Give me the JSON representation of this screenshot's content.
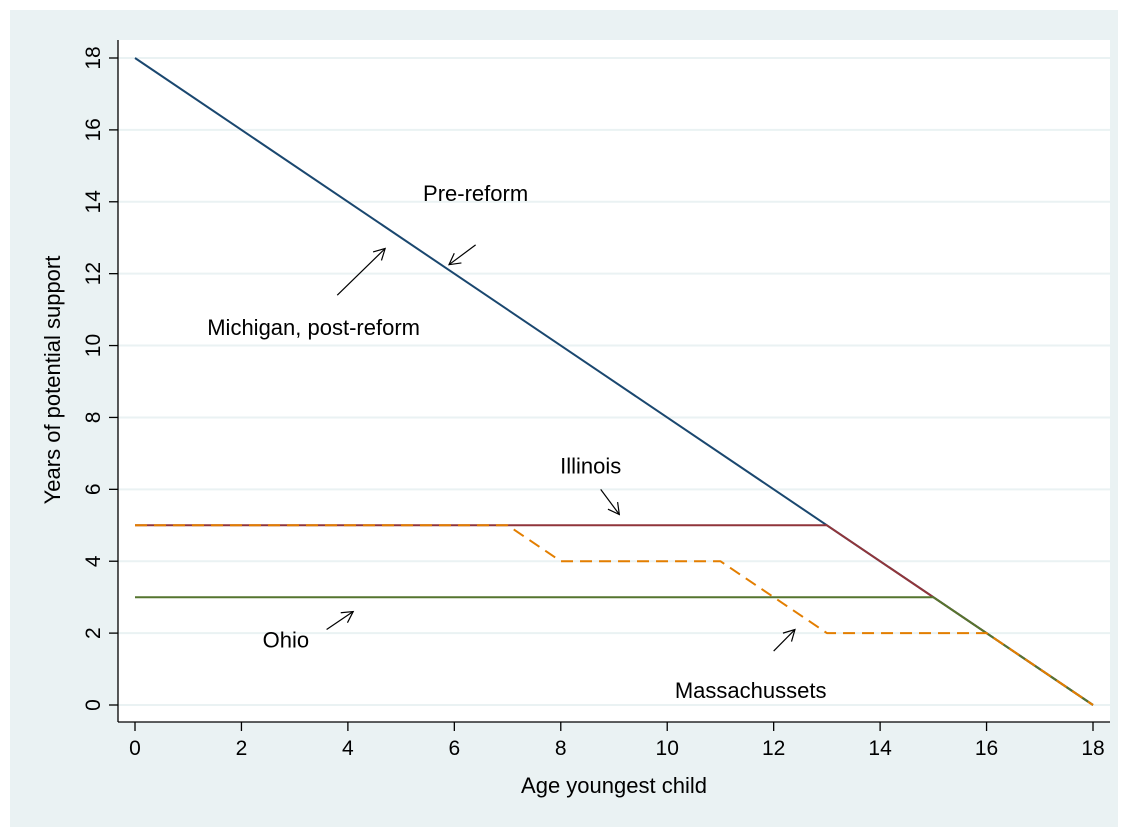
{
  "chart_data": {
    "type": "line",
    "xlabel": "Age youngest child",
    "ylabel": "Years of potential support",
    "xlim": [
      0,
      18
    ],
    "ylim": [
      0,
      18
    ],
    "xticks": [
      0,
      2,
      4,
      6,
      8,
      10,
      12,
      14,
      16,
      18
    ],
    "yticks": [
      0,
      2,
      4,
      6,
      8,
      10,
      12,
      14,
      16,
      18
    ],
    "grid": true,
    "legend": "none",
    "series": [
      {
        "name": "Pre-reform",
        "color": "#1a476f",
        "dash": "solid",
        "points": [
          [
            0,
            18
          ],
          [
            18,
            0
          ]
        ]
      },
      {
        "name": "Illinois",
        "color": "#90353b",
        "dash": "solid",
        "points": [
          [
            0,
            5
          ],
          [
            13,
            5
          ],
          [
            18,
            0
          ]
        ]
      },
      {
        "name": "Ohio",
        "color": "#55752f",
        "dash": "solid",
        "points": [
          [
            0,
            3
          ],
          [
            15,
            3
          ],
          [
            18,
            0
          ]
        ]
      },
      {
        "name": "Massachussets",
        "color": "#e37e00",
        "dash": "dashed",
        "points": [
          [
            0,
            5
          ],
          [
            7,
            5
          ],
          [
            8,
            4
          ],
          [
            11,
            4
          ],
          [
            13,
            2
          ],
          [
            16,
            2
          ],
          [
            18,
            0
          ]
        ]
      }
    ],
    "annotations": [
      {
        "text": "Pre-reform",
        "arrow_from": [
          6.4,
          12.8
        ],
        "arrow_to": [
          5.9,
          12.25
        ]
      },
      {
        "text": "Michigan, post-reform",
        "arrow_from": [
          3.8,
          11.4
        ],
        "arrow_to": [
          4.7,
          12.7
        ]
      },
      {
        "text": "Illinois",
        "arrow_from": [
          8.75,
          6.0
        ],
        "arrow_to": [
          9.1,
          5.3
        ]
      },
      {
        "text": "Ohio",
        "arrow_from": [
          3.6,
          2.1
        ],
        "arrow_to": [
          4.1,
          2.6
        ]
      },
      {
        "text": "Massachussets",
        "arrow_from": [
          12.0,
          1.5
        ],
        "arrow_to": [
          12.4,
          2.1
        ]
      }
    ]
  }
}
